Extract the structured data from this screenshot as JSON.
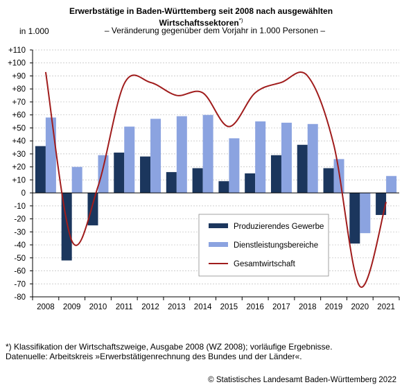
{
  "chart_data": {
    "type": "bar",
    "title_line1": "Erwerbstätige in Baden-Württemberg seit 2008 nach ausgewählten",
    "title_line2": "Wirtschaftssektoren",
    "title_footnote_mark": "*)",
    "subtitle": "– Veränderung gegenüber dem Vorjahr in 1.000 Personen –",
    "ylabel": "in 1.000",
    "categories": [
      "2008",
      "2009",
      "2010",
      "2011",
      "2012",
      "2013",
      "2014",
      "2015",
      "2016",
      "2017",
      "2018",
      "2019",
      "2020",
      "2021"
    ],
    "ylim": [
      -80,
      110
    ],
    "yticks": [
      110,
      100,
      90,
      80,
      70,
      60,
      50,
      40,
      30,
      20,
      10,
      0,
      -10,
      -20,
      -30,
      -40,
      -50,
      -60,
      -70,
      -80
    ],
    "ytick_labels": [
      "+110",
      "+100",
      "+90",
      "+80",
      "+70",
      "+60",
      "+50",
      "+40",
      "+30",
      "+20",
      "+10",
      "0",
      "-10",
      "-20",
      "-30",
      "-40",
      "-50",
      "-60",
      "-70",
      "-80"
    ],
    "series": [
      {
        "name": "Produzierendes Gewerbe",
        "kind": "bar",
        "color": "#1b365d",
        "values": [
          36,
          -52,
          -25,
          31,
          28,
          16,
          19,
          9,
          15,
          29,
          37,
          19,
          -39,
          -17
        ]
      },
      {
        "name": "Dienstleistungsbereiche",
        "kind": "bar",
        "color": "#8ba3e0",
        "values": [
          58,
          20,
          29,
          51,
          57,
          59,
          60,
          42,
          55,
          54,
          53,
          26,
          -31,
          13
        ]
      },
      {
        "name": "Gesamtwirtschaft",
        "kind": "line",
        "color": "#a01c1c",
        "values": [
          93,
          -37,
          5,
          84,
          85,
          75,
          77,
          51,
          77,
          85,
          90,
          37,
          -72,
          -7
        ]
      }
    ],
    "legend_position": "lower-right",
    "grid": true
  },
  "footnote_line1": "*) Klassifikation der Wirtschaftszweige, Ausgabe 2008 (WZ 2008); vorläufige Ergebnisse.",
  "footnote_line2": "Datenuelle: Arbeitskreis »Erwerbstätigenrechnung des Bundes und der Länder«.",
  "copyright": "© Statistisches Landesamt Baden-Württemberg 2022"
}
